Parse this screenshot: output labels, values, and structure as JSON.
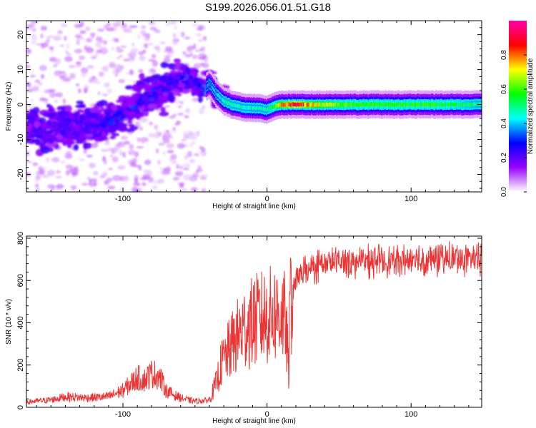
{
  "title": "S199.2026.056.01.51.G18",
  "chart_data": [
    {
      "type": "heatmap",
      "xlabel": "Height of straight line (km)",
      "ylabel": "Frequency (Hz)",
      "xlim": [
        -167,
        149
      ],
      "ylim": [
        -25,
        24
      ],
      "xticks": [
        -100,
        0,
        100
      ],
      "yticks": [
        -20,
        -10,
        0,
        10,
        20
      ],
      "grid": false,
      "colorbar": {
        "label": "Normalized spectral amplitude",
        "range": [
          0,
          1
        ],
        "ticks": [
          0.0,
          0.2,
          0.4,
          0.6,
          0.8
        ],
        "colors": [
          "#ffffff",
          "#9a00ff",
          "#0000ff",
          "#00ffff",
          "#00ff00",
          "#ffff00",
          "#ff0000",
          "#ff00aa"
        ]
      },
      "ridge": {
        "x": [
          -167,
          -150,
          -140,
          -125,
          -115,
          -105,
          -95,
          -85,
          -75,
          -67,
          -60,
          -52,
          -45,
          -40,
          -35,
          -30,
          -25,
          -15,
          -5,
          0,
          5,
          10,
          20,
          40,
          60,
          80,
          100,
          120,
          149
        ],
        "y": [
          -7,
          -7,
          -6,
          -6,
          -5,
          -4,
          -1,
          2,
          4,
          6,
          7,
          8,
          4,
          6,
          3,
          1,
          0,
          -1,
          -1,
          -1.5,
          -0.5,
          0,
          0,
          0,
          0,
          0,
          0,
          0,
          0
        ],
        "peak_amplitude": [
          0.2,
          0.25,
          0.25,
          0.25,
          0.25,
          0.3,
          0.3,
          0.3,
          0.3,
          0.3,
          0.3,
          0.3,
          0.3,
          0.4,
          0.4,
          0.5,
          0.5,
          0.5,
          0.5,
          0.5,
          0.6,
          0.8,
          0.9,
          0.7,
          0.6,
          0.6,
          0.6,
          0.6,
          0.5
        ]
      }
    },
    {
      "type": "line",
      "xlabel": "Height of straight line (km)",
      "ylabel": "SNR (10 * v/v)",
      "xlim": [
        -167,
        149
      ],
      "ylim": [
        0,
        810
      ],
      "xticks": [
        -100,
        0,
        100
      ],
      "yticks": [
        0,
        200,
        400,
        600,
        800
      ],
      "grid": false,
      "color": "#ee3333",
      "series": [
        {
          "x": [
            -167,
            -150,
            -140,
            -125,
            -110,
            -100,
            -95,
            -90,
            -85,
            -80,
            -75,
            -70,
            -65,
            -60,
            -55,
            -50,
            -45,
            -40,
            -35,
            -32,
            -28,
            -24,
            -20,
            -15,
            -10,
            -5,
            0,
            5,
            10,
            12,
            14,
            15,
            16,
            18,
            20,
            25,
            30,
            35,
            40,
            50,
            60,
            70,
            80,
            90,
            100,
            110,
            120,
            130,
            140,
            149
          ],
          "y": [
            25,
            35,
            50,
            45,
            50,
            80,
            110,
            140,
            130,
            160,
            150,
            80,
            60,
            45,
            35,
            30,
            30,
            35,
            120,
            200,
            250,
            300,
            340,
            380,
            400,
            420,
            430,
            440,
            450,
            420,
            300,
            150,
            500,
            560,
            600,
            640,
            660,
            670,
            680,
            690,
            690,
            690,
            695,
            690,
            700,
            695,
            700,
            705,
            700,
            700
          ]
        }
      ]
    }
  ]
}
